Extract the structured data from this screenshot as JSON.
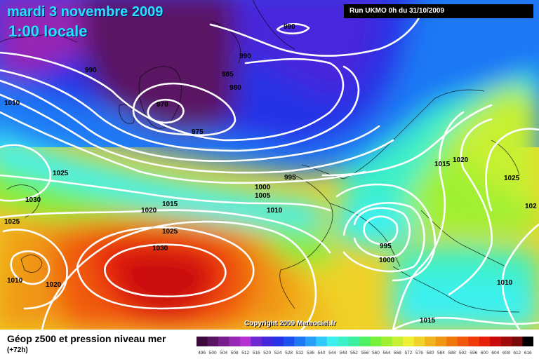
{
  "header": {
    "date": "mardi 3 novembre 2009",
    "time": "1:00 locale",
    "run": "Run UKMO 0h du 31/10/2009"
  },
  "footer": {
    "field": "Géop z500 et pression niveau mer",
    "lead": "(+72h)",
    "copyright": "Copyright 2009 Meteociel.fr"
  },
  "isobar_labels": [
    {
      "text": "990"
    },
    {
      "text": "990"
    },
    {
      "text": "990"
    },
    {
      "text": "985"
    },
    {
      "text": "980"
    },
    {
      "text": "970"
    },
    {
      "text": "975"
    },
    {
      "text": "1010"
    },
    {
      "text": "1025"
    },
    {
      "text": "1030"
    },
    {
      "text": "1025"
    },
    {
      "text": "1020"
    },
    {
      "text": "1015"
    },
    {
      "text": "1025"
    },
    {
      "text": "1030"
    },
    {
      "text": "1010"
    },
    {
      "text": "1020"
    },
    {
      "text": "995"
    },
    {
      "text": "1000"
    },
    {
      "text": "1005"
    },
    {
      "text": "1010"
    },
    {
      "text": "995"
    },
    {
      "text": "1000"
    },
    {
      "text": "1015"
    },
    {
      "text": "1020"
    },
    {
      "text": "1025"
    },
    {
      "text": "102"
    },
    {
      "text": "1010"
    },
    {
      "text": "1015"
    }
  ],
  "legend": {
    "values": [
      "496",
      "500",
      "504",
      "508",
      "512",
      "516",
      "520",
      "524",
      "528",
      "532",
      "536",
      "540",
      "544",
      "548",
      "552",
      "556",
      "560",
      "564",
      "568",
      "572",
      "576",
      "580",
      "584",
      "588",
      "592",
      "596",
      "600",
      "604",
      "608",
      "612",
      "616"
    ],
    "colors": [
      "#3c0a3c",
      "#5a1464",
      "#781e8c",
      "#9628b4",
      "#b432d2",
      "#6e2ad2",
      "#4628dc",
      "#2832e6",
      "#1e50f0",
      "#1e78f5",
      "#28a0fa",
      "#32c8fa",
      "#3cf0f0",
      "#3cf0c8",
      "#3cf0a0",
      "#50f064",
      "#78f03c",
      "#a0f032",
      "#c8f032",
      "#f0f032",
      "#f0d228",
      "#f0b41e",
      "#f09614",
      "#f0780a",
      "#f05a0a",
      "#f03c0a",
      "#e61e0a",
      "#c80a0a",
      "#a00a0a",
      "#780a0a",
      "#000000"
    ]
  }
}
